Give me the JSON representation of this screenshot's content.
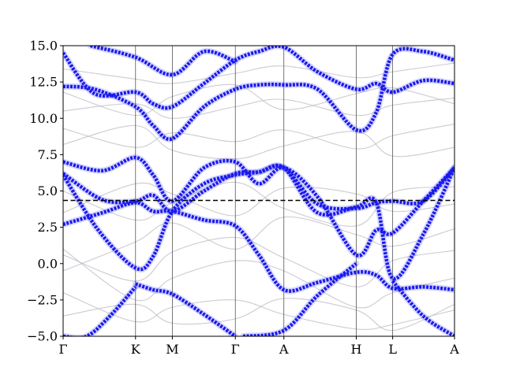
{
  "chart_data": {
    "type": "line",
    "title": "",
    "xlabel": "",
    "ylabel": "",
    "ylim": [
      -5.0,
      15.0
    ],
    "yticks": [
      -5.0,
      -2.5,
      0.0,
      2.5,
      5.0,
      7.5,
      10.0,
      12.5,
      15.0
    ],
    "ytick_labels": [
      "−5.0",
      "−2.5",
      "0.0",
      "2.5",
      "5.0",
      "7.5",
      "10.0",
      "12.5",
      "15.0"
    ],
    "kpath": [
      "Γ",
      "K",
      "M",
      "Γ",
      "A",
      "H",
      "L",
      "A"
    ],
    "kpath_positions": [
      0.0,
      0.185,
      0.279,
      0.44,
      0.564,
      0.749,
      0.842,
      1.0
    ],
    "fermi_level": 4.35,
    "grid": false,
    "colors": {
      "projected": "#1a1aee",
      "background": "#b9b9c4",
      "fermi": "#000000",
      "symmetry_lines": "#555555"
    },
    "series": [
      {
        "kind": "projected",
        "x": [
          0,
          0.1,
          0.185,
          0.23,
          0.279,
          0.36,
          0.44,
          0.5,
          0.564,
          0.65,
          0.749,
          0.8,
          0.842,
          0.92,
          1.0
        ],
        "y": [
          2.7,
          3.5,
          4.2,
          3.6,
          3.6,
          3.0,
          2.6,
          0.6,
          -1.8,
          -1.3,
          -0.6,
          -0.8,
          -1.7,
          -1.6,
          -1.8
        ]
      },
      {
        "kind": "projected",
        "x": [
          0,
          0.1,
          0.185,
          0.23,
          0.279,
          0.36,
          0.44,
          0.5,
          0.564,
          0.65,
          0.749,
          0.8,
          0.842,
          0.92,
          1.0
        ],
        "y": [
          6.2,
          4.4,
          4.3,
          4.7,
          3.6,
          5.0,
          6.2,
          6.3,
          6.6,
          4.1,
          3.8,
          4.2,
          4.3,
          4.3,
          6.6
        ]
      },
      {
        "kind": "projected",
        "x": [
          0,
          0.1,
          0.185,
          0.23,
          0.279,
          0.36,
          0.44,
          0.5,
          0.564,
          0.65,
          0.749,
          0.8,
          0.842,
          0.92,
          1.0
        ],
        "y": [
          7.0,
          6.4,
          7.3,
          6.1,
          4.3,
          6.6,
          7.0,
          5.5,
          6.6,
          4.6,
          0.6,
          2.3,
          2.1,
          4.3,
          6.6
        ]
      },
      {
        "kind": "projected",
        "x": [
          0,
          0.09,
          0.185,
          0.23,
          0.279,
          0.36,
          0.44,
          0.5,
          0.564,
          0.65,
          0.749,
          0.8,
          0.842,
          0.92,
          1.0
        ],
        "y": [
          6.1,
          2.3,
          -0.3,
          0.5,
          3.6,
          5.5,
          6.1,
          6.3,
          6.6,
          3.5,
          3.9,
          4.2,
          -1.0,
          2.0,
          6.6
        ]
      },
      {
        "kind": "projected",
        "x": [
          0,
          0.08,
          0.185,
          0.23,
          0.279,
          0.36,
          0.44,
          0.5,
          0.564,
          0.65,
          0.749,
          0.8,
          0.842,
          0.92,
          1.0
        ],
        "y": [
          12.2,
          12.0,
          10.8,
          9.5,
          8.6,
          10.8,
          12.0,
          12.3,
          12.3,
          12.0,
          9.2,
          10.4,
          14.4,
          14.6,
          14.0
        ]
      },
      {
        "kind": "projected",
        "x": [
          0,
          0.08,
          0.185,
          0.23,
          0.279,
          0.36,
          0.44,
          0.5,
          0.564,
          0.65,
          0.749,
          0.8,
          0.842,
          0.92,
          1.0
        ],
        "y": [
          14.5,
          11.7,
          11.8,
          11.0,
          10.8,
          12.4,
          14.0,
          14.6,
          14.9,
          13.2,
          12.0,
          12.4,
          11.8,
          12.6,
          12.4
        ]
      },
      {
        "kind": "projected",
        "x": [
          0.185,
          0.23,
          0.279,
          0.36,
          0.44
        ],
        "y": [
          -1.4,
          -1.8,
          -2.1,
          -3.5,
          -5.0
        ]
      },
      {
        "kind": "projected",
        "x": [
          0.46,
          0.564,
          0.65,
          0.749
        ],
        "y": [
          -5.0,
          -4.6,
          -2.2,
          0.0
        ]
      },
      {
        "kind": "projected",
        "x": [
          0.0,
          0.06,
          0.12,
          0.185
        ],
        "y": [
          -5.0,
          -5.0,
          -3.6,
          -1.6
        ]
      },
      {
        "kind": "projected",
        "x": [
          0.842,
          0.92,
          1.0
        ],
        "y": [
          -1.2,
          -3.6,
          -5.0
        ]
      },
      {
        "kind": "projected",
        "x": [
          0.07,
          0.185,
          0.279,
          0.36,
          0.44
        ],
        "y": [
          15.0,
          14.2,
          13.0,
          14.6,
          13.9
        ]
      },
      {
        "kind": "background",
        "x": [
          0,
          0.185,
          0.279,
          0.44,
          0.564,
          0.749,
          0.842,
          1.0
        ],
        "y": [
          -0.5,
          1.5,
          2.8,
          1.0,
          3.2,
          2.0,
          1.2,
          2.4
        ]
      },
      {
        "kind": "background",
        "x": [
          0,
          0.185,
          0.279,
          0.44,
          0.564,
          0.749,
          0.842,
          1.0
        ],
        "y": [
          1.0,
          -2.5,
          -1.0,
          0.2,
          -0.5,
          -3.0,
          -2.0,
          -1.0
        ]
      },
      {
        "kind": "background",
        "x": [
          0,
          0.185,
          0.279,
          0.44,
          0.564,
          0.749,
          0.842,
          1.0
        ],
        "y": [
          -2.0,
          -4.0,
          -3.0,
          -2.5,
          -3.5,
          -4.5,
          -4.2,
          -3.2
        ]
      },
      {
        "kind": "background",
        "x": [
          0,
          0.185,
          0.279,
          0.44,
          0.564,
          0.749,
          0.842,
          1.0
        ],
        "y": [
          3.5,
          5.5,
          4.8,
          3.3,
          5.2,
          4.8,
          3.6,
          4.1
        ]
      },
      {
        "kind": "background",
        "x": [
          0,
          0.185,
          0.279,
          0.44,
          0.564,
          0.749,
          0.842,
          1.0
        ],
        "y": [
          9.3,
          8.0,
          9.0,
          8.4,
          9.2,
          7.9,
          8.8,
          9.6
        ]
      },
      {
        "kind": "background",
        "x": [
          0,
          0.185,
          0.279,
          0.44,
          0.564,
          0.749,
          0.842,
          1.0
        ],
        "y": [
          10.5,
          11.0,
          10.0,
          10.8,
          11.3,
          10.2,
          10.9,
          11.4
        ]
      },
      {
        "kind": "background",
        "x": [
          0,
          0.185,
          0.279,
          0.44,
          0.564,
          0.749,
          0.842,
          1.0
        ],
        "y": [
          13.4,
          12.7,
          12.4,
          13.1,
          13.6,
          12.8,
          13.2,
          13.8
        ]
      },
      {
        "kind": "background",
        "x": [
          0,
          0.185,
          0.279,
          0.44,
          0.564,
          0.749,
          0.842,
          1.0
        ],
        "y": [
          8.2,
          9.5,
          7.8,
          7.2,
          8.1,
          9.1,
          7.4,
          8.0
        ]
      },
      {
        "kind": "background",
        "x": [
          0,
          0.185,
          0.279,
          0.44,
          0.564,
          0.749,
          0.842,
          1.0
        ],
        "y": [
          0.6,
          -1.2,
          0.8,
          1.8,
          0.4,
          -1.6,
          0.2,
          0.9
        ]
      },
      {
        "kind": "background",
        "x": [
          0,
          0.185,
          0.279,
          0.44,
          0.564,
          0.749,
          0.842,
          1.0
        ],
        "y": [
          5.0,
          3.0,
          4.2,
          5.6,
          3.8,
          2.6,
          4.9,
          5.3
        ]
      },
      {
        "kind": "background",
        "x": [
          0,
          0.185,
          0.279,
          0.44,
          0.564,
          0.749,
          0.842,
          1.0
        ],
        "y": [
          11.8,
          10.2,
          11.5,
          12.3,
          10.6,
          11.7,
          12.1,
          11.0
        ]
      },
      {
        "kind": "background",
        "x": [
          0,
          0.185,
          0.279,
          0.44,
          0.564,
          0.749,
          0.842,
          1.0
        ],
        "y": [
          -3.6,
          -2.8,
          -4.1,
          -3.8,
          -2.4,
          -3.2,
          -4.6,
          -2.8
        ]
      }
    ]
  }
}
